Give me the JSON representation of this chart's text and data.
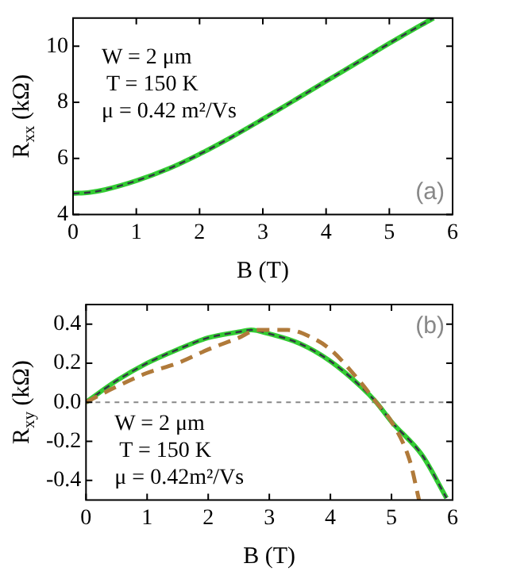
{
  "chart_data": [
    {
      "type": "line",
      "xlabel": "B (T)",
      "ylabel": "R$_{xx}$ (kΩ)",
      "xlim": [
        0,
        6
      ],
      "xticks": [
        0,
        1,
        2,
        3,
        4,
        5,
        6
      ],
      "ylim": [
        4,
        11
      ],
      "yticks": [
        4,
        6,
        8,
        10
      ],
      "legend": false,
      "grid": false,
      "marker": "none",
      "annotations": [
        "W = 2 μm",
        "T = 150 K",
        "μ = 0.42 m²/Vs",
        "(a)"
      ],
      "series": [
        {
          "color": "#33cc33",
          "line_style": "solid",
          "x": [
            0,
            0.25,
            0.5,
            1,
            1.5,
            2,
            2.5,
            3,
            3.5,
            4,
            4.5,
            5,
            5.5,
            5.7
          ],
          "values": [
            4.75,
            4.78,
            4.88,
            5.2,
            5.62,
            6.15,
            6.75,
            7.4,
            8.07,
            8.75,
            9.42,
            10.1,
            10.75,
            11
          ]
        },
        {
          "color": "#333344",
          "line_style": "dashed",
          "x": [
            0,
            0.25,
            0.5,
            1,
            1.5,
            2,
            2.5,
            3,
            3.5,
            4,
            4.5,
            5,
            5.5,
            5.7
          ],
          "values": [
            4.75,
            4.78,
            4.88,
            5.2,
            5.62,
            6.15,
            6.75,
            7.4,
            8.07,
            8.75,
            9.42,
            10.1,
            10.75,
            11
          ]
        }
      ]
    },
    {
      "type": "line",
      "xlabel": "B (T)",
      "ylabel": "R$_{xy}$ (kΩ)",
      "xlim": [
        0,
        6
      ],
      "xticks": [
        0,
        1,
        2,
        3,
        4,
        5,
        6
      ],
      "ylim": [
        -0.5,
        0.5
      ],
      "yticks": [
        {
          "value": -0.4,
          "label": "-0.4"
        },
        {
          "value": -0.2,
          "label": "-0.2"
        },
        {
          "value": 0,
          "label": "0.0"
        },
        {
          "value": 0.2,
          "label": "0.2"
        },
        {
          "value": 0.4,
          "label": "0.4"
        }
      ],
      "legend": false,
      "grid": false,
      "marker": "none",
      "annotations": [
        "W = 2 μm",
        "T = 150 K",
        "μ = 0.42m²/Vs",
        "(b)"
      ],
      "ref_lines": [
        {
          "axis": "y",
          "value": 0,
          "color": "#888888",
          "line_style": "dashed"
        }
      ],
      "series": [
        {
          "color": "#33cc33",
          "line_style": "solid",
          "x": [
            0,
            0.5,
            1,
            1.5,
            2,
            2.5,
            2.7,
            3,
            3.5,
            4,
            4.5,
            4.75,
            5,
            5.5,
            5.9
          ],
          "values": [
            0,
            0.11,
            0.2,
            0.27,
            0.33,
            0.36,
            0.37,
            0.35,
            0.3,
            0.21,
            0.08,
            0,
            -0.1,
            -0.27,
            -0.49
          ]
        },
        {
          "color": "#333344",
          "line_style": "dashed",
          "x": [
            0,
            0.5,
            1,
            1.5,
            2,
            2.5,
            2.7,
            3,
            3.5,
            4,
            4.5,
            4.75,
            5,
            5.5,
            5.9
          ],
          "values": [
            0,
            0.11,
            0.2,
            0.27,
            0.33,
            0.36,
            0.37,
            0.35,
            0.3,
            0.21,
            0.08,
            0,
            -0.1,
            -0.27,
            -0.49
          ]
        },
        {
          "color": "#b07a3a",
          "line_style": "dashed",
          "x": [
            0,
            0.5,
            1,
            1.5,
            2,
            2.5,
            2.8,
            3.3,
            3.7,
            4,
            4.5,
            4.75,
            5,
            5.3,
            5.45
          ],
          "values": [
            0,
            0.08,
            0.15,
            0.2,
            0.27,
            0.33,
            0.37,
            0.37,
            0.33,
            0.27,
            0.1,
            0,
            -0.1,
            -0.3,
            -0.5
          ]
        }
      ]
    }
  ]
}
